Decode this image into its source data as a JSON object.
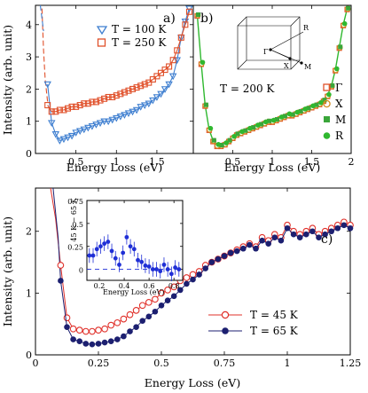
{
  "chart_data": [
    {
      "id": "a",
      "type": "scatter",
      "panel_label": "a)",
      "xlabel": "Energy Loss (eV)",
      "ylabel": "Intensity (arb. unit)",
      "xlim": [
        0,
        1.95
      ],
      "ylim": [
        0,
        4.6
      ],
      "xticks": [
        0.5,
        1,
        1.5
      ],
      "xtick_labels": [
        "0.5",
        "1",
        "1.5"
      ],
      "yticks": [
        0,
        1,
        2,
        3,
        4
      ],
      "ytick_labels": [
        "0",
        "1",
        "2",
        "3",
        "4"
      ],
      "series": [
        {
          "name": "T = 100 K",
          "color": "#3f7fd0",
          "marker": "triangle-down-open",
          "x": [
            0.15,
            0.2,
            0.25,
            0.3,
            0.35,
            0.4,
            0.45,
            0.5,
            0.55,
            0.6,
            0.65,
            0.7,
            0.75,
            0.8,
            0.85,
            0.9,
            0.95,
            1.0,
            1.05,
            1.1,
            1.15,
            1.2,
            1.25,
            1.3,
            1.35,
            1.4,
            1.45,
            1.5,
            1.55,
            1.6,
            1.65,
            1.7,
            1.75,
            1.8,
            1.85,
            1.9
          ],
          "y": [
            2.15,
            0.95,
            0.6,
            0.4,
            0.45,
            0.5,
            0.55,
            0.65,
            0.7,
            0.75,
            0.8,
            0.85,
            0.9,
            0.95,
            1.0,
            1.0,
            1.05,
            1.1,
            1.15,
            1.2,
            1.25,
            1.3,
            1.35,
            1.45,
            1.5,
            1.55,
            1.65,
            1.75,
            1.85,
            2.0,
            2.15,
            2.4,
            2.9,
            3.6,
            4.1,
            4.5
          ]
        },
        {
          "name": "T = 250 K",
          "color": "#e0502a",
          "marker": "square-open",
          "x": [
            0.15,
            0.2,
            0.25,
            0.3,
            0.35,
            0.4,
            0.45,
            0.5,
            0.55,
            0.6,
            0.65,
            0.7,
            0.75,
            0.8,
            0.85,
            0.9,
            0.95,
            1.0,
            1.05,
            1.1,
            1.15,
            1.2,
            1.25,
            1.3,
            1.35,
            1.4,
            1.45,
            1.5,
            1.55,
            1.6,
            1.65,
            1.7,
            1.75,
            1.8,
            1.85,
            1.9
          ],
          "y": [
            1.5,
            1.3,
            1.3,
            1.35,
            1.35,
            1.4,
            1.45,
            1.45,
            1.5,
            1.55,
            1.55,
            1.6,
            1.6,
            1.65,
            1.7,
            1.75,
            1.75,
            1.8,
            1.85,
            1.9,
            1.95,
            2.0,
            2.05,
            2.1,
            2.15,
            2.2,
            2.3,
            2.4,
            2.5,
            2.6,
            2.7,
            2.9,
            3.2,
            3.6,
            4.0,
            4.4
          ]
        }
      ],
      "fit": {
        "color": "#e0502a",
        "dashed_lowE": true
      }
    },
    {
      "id": "b",
      "type": "scatter",
      "panel_label": "b)",
      "annotation": "T = 200 K",
      "xlabel": "Energy Loss (eV)",
      "xlim": [
        0,
        2
      ],
      "ylim": [
        0,
        4.6
      ],
      "xticks": [
        0.5,
        1,
        1.5,
        2
      ],
      "xtick_labels": [
        "0.5",
        "1",
        "1.5",
        "2"
      ],
      "inset_points": [
        "R",
        "Γ",
        "X",
        "M"
      ],
      "series": [
        {
          "name": "Γ",
          "color": "#e0502a",
          "marker": "square-open"
        },
        {
          "name": "X",
          "color": "#d08a1c",
          "marker": "circle-open"
        },
        {
          "name": "M",
          "color": "#3aa63a",
          "marker": "square-filled"
        },
        {
          "name": "R",
          "color": "#2fb82f",
          "marker": "circle-filled"
        }
      ],
      "x": [
        0.05,
        0.1,
        0.15,
        0.2,
        0.25,
        0.3,
        0.35,
        0.4,
        0.45,
        0.5,
        0.55,
        0.6,
        0.65,
        0.7,
        0.75,
        0.8,
        0.85,
        0.9,
        0.95,
        1.0,
        1.05,
        1.1,
        1.15,
        1.2,
        1.25,
        1.3,
        1.35,
        1.4,
        1.45,
        1.5,
        1.55,
        1.6,
        1.65,
        1.7,
        1.75,
        1.8,
        1.85,
        1.9,
        1.95
      ],
      "y": [
        4.3,
        2.8,
        1.5,
        0.75,
        0.4,
        0.25,
        0.25,
        0.3,
        0.4,
        0.5,
        0.6,
        0.65,
        0.7,
        0.75,
        0.8,
        0.85,
        0.9,
        0.95,
        1.0,
        1.0,
        1.05,
        1.1,
        1.15,
        1.2,
        1.2,
        1.25,
        1.3,
        1.35,
        1.4,
        1.45,
        1.5,
        1.55,
        1.65,
        1.8,
        2.1,
        2.6,
        3.3,
        4.0,
        4.5
      ]
    },
    {
      "id": "c",
      "type": "line",
      "panel_label": "c)",
      "xlabel": "Energy Loss (eV)",
      "ylabel": "Intensity (arb. unit)",
      "xlim": [
        0,
        1.25
      ],
      "ylim": [
        0,
        2.7
      ],
      "xticks": [
        0,
        0.25,
        0.5,
        0.75,
        1,
        1.25
      ],
      "xtick_labels": [
        "0",
        "0.25",
        "0.5",
        "0.75",
        "1",
        "1.25"
      ],
      "yticks": [
        0,
        1,
        2
      ],
      "ytick_labels": [
        "0",
        "1",
        "2"
      ],
      "series": [
        {
          "name": "T = 45 K",
          "color": "#e0302a",
          "marker": "circle-open",
          "x": [
            0.1,
            0.125,
            0.15,
            0.175,
            0.2,
            0.225,
            0.25,
            0.275,
            0.3,
            0.325,
            0.35,
            0.375,
            0.4,
            0.425,
            0.45,
            0.475,
            0.5,
            0.525,
            0.55,
            0.575,
            0.6,
            0.625,
            0.65,
            0.675,
            0.7,
            0.725,
            0.75,
            0.775,
            0.8,
            0.825,
            0.85,
            0.875,
            0.9,
            0.925,
            0.95,
            0.975,
            1.0,
            1.025,
            1.05,
            1.075,
            1.1,
            1.125,
            1.15,
            1.175,
            1.2,
            1.225,
            1.25
          ],
          "y": [
            1.45,
            0.6,
            0.42,
            0.4,
            0.38,
            0.38,
            0.4,
            0.42,
            0.48,
            0.52,
            0.58,
            0.65,
            0.72,
            0.8,
            0.85,
            0.9,
            1.0,
            1.05,
            1.1,
            1.2,
            1.25,
            1.3,
            1.35,
            1.45,
            1.5,
            1.55,
            1.6,
            1.65,
            1.7,
            1.75,
            1.8,
            1.75,
            1.9,
            1.85,
            1.95,
            1.9,
            2.1,
            2.0,
            1.95,
            2.0,
            2.05,
            1.95,
            2.0,
            2.05,
            2.1,
            2.15,
            2.1
          ]
        },
        {
          "name": "T = 65 K",
          "color": "#1c1f70",
          "marker": "circle-filled",
          "x": [
            0.1,
            0.125,
            0.15,
            0.175,
            0.2,
            0.225,
            0.25,
            0.275,
            0.3,
            0.325,
            0.35,
            0.375,
            0.4,
            0.425,
            0.45,
            0.475,
            0.5,
            0.525,
            0.55,
            0.575,
            0.6,
            0.625,
            0.65,
            0.675,
            0.7,
            0.725,
            0.75,
            0.775,
            0.8,
            0.825,
            0.85,
            0.875,
            0.9,
            0.925,
            0.95,
            0.975,
            1.0,
            1.025,
            1.05,
            1.075,
            1.1,
            1.125,
            1.15,
            1.175,
            1.2,
            1.225,
            1.25
          ],
          "y": [
            1.2,
            0.45,
            0.25,
            0.22,
            0.18,
            0.17,
            0.18,
            0.2,
            0.22,
            0.25,
            0.3,
            0.38,
            0.45,
            0.55,
            0.62,
            0.7,
            0.8,
            0.88,
            0.95,
            1.05,
            1.15,
            1.22,
            1.3,
            1.4,
            1.5,
            1.55,
            1.6,
            1.65,
            1.68,
            1.72,
            1.78,
            1.72,
            1.85,
            1.8,
            1.9,
            1.85,
            2.05,
            1.95,
            1.9,
            1.95,
            2.0,
            1.9,
            1.95,
            2.0,
            2.05,
            2.1,
            2.05
          ]
        }
      ],
      "inset": {
        "ylabel": "45 K − 65 K",
        "xlabel": "Energy Loss (eV)",
        "xlim": [
          0.1,
          0.87
        ],
        "ylim": [
          -0.12,
          0.75
        ],
        "xticks": [
          0.2,
          0.4,
          0.6,
          0.8
        ],
        "xtick_labels": [
          "0.2",
          "0.4",
          "0.6",
          "0.8"
        ],
        "yticks": [
          0,
          0.25,
          0.5,
          0.75
        ],
        "ytick_labels": [
          "0",
          "0.25",
          "0.5",
          "0.75"
        ],
        "color": "#1f2fd6",
        "x": [
          0.12,
          0.15,
          0.18,
          0.21,
          0.24,
          0.27,
          0.3,
          0.33,
          0.36,
          0.39,
          0.42,
          0.45,
          0.48,
          0.51,
          0.54,
          0.57,
          0.6,
          0.63,
          0.66,
          0.69,
          0.72,
          0.75,
          0.78,
          0.81,
          0.84
        ],
        "y": [
          0.15,
          0.15,
          0.22,
          0.25,
          0.28,
          0.3,
          0.2,
          0.12,
          0.05,
          0.18,
          0.35,
          0.25,
          0.22,
          0.1,
          0.08,
          0.04,
          0.03,
          0.0,
          0.0,
          -0.02,
          0.05,
          0.0,
          -0.05,
          0.02,
          0.0
        ],
        "err": 0.08
      }
    }
  ]
}
